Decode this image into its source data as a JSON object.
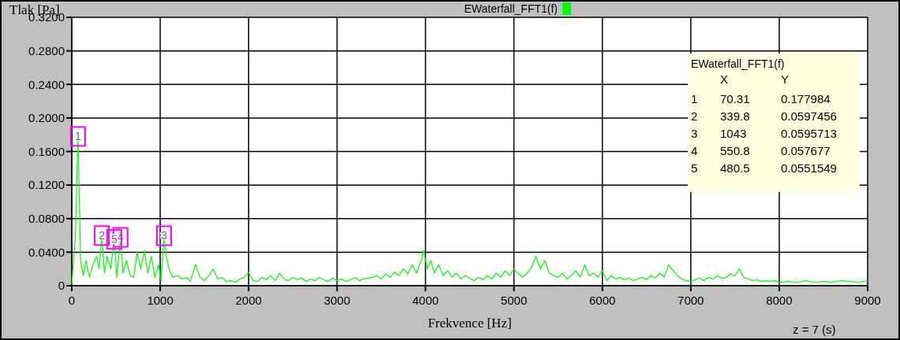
{
  "chart_data": {
    "type": "line",
    "xlabel": "Frekvence [Hz]",
    "ylabel": "Tlak [Pa]",
    "legend": "top",
    "grid": true,
    "xlim": [
      0,
      9000
    ],
    "ylim": [
      0,
      0.32
    ],
    "xticks": [
      0,
      1000,
      2000,
      3000,
      4000,
      5000,
      6000,
      7000,
      8000,
      9000
    ],
    "yticks": [
      {
        "value": 0,
        "label": "0"
      },
      {
        "value": 0.04,
        "label": "0.0400"
      },
      {
        "value": 0.08,
        "label": "0.0800"
      },
      {
        "value": 0.12,
        "label": "0.1200"
      },
      {
        "value": 0.16,
        "label": "0.1600"
      },
      {
        "value": 0.2,
        "label": "0.2000"
      },
      {
        "value": 0.24,
        "label": "0.2400"
      },
      {
        "value": 0.28,
        "label": "0.2800"
      },
      {
        "value": 0.32,
        "label": "0.3200"
      }
    ],
    "x": [
      0,
      20,
      40,
      70.31,
      100,
      130,
      160,
      200,
      240,
      280,
      310,
      339.8,
      370,
      400,
      440,
      480.5,
      510,
      550.8,
      580,
      620,
      660,
      700,
      740,
      780,
      820,
      860,
      900,
      940,
      980,
      1010,
      1043,
      1070,
      1100,
      1140,
      1200,
      1250,
      1300,
      1340,
      1400,
      1450,
      1500,
      1550,
      1600,
      1650,
      1700,
      1750,
      1800,
      1850,
      1900,
      1950,
      2000,
      2050,
      2100,
      2150,
      2200,
      2250,
      2300,
      2350,
      2400,
      2450,
      2500,
      2550,
      2600,
      2650,
      2700,
      2750,
      2800,
      2850,
      2900,
      2950,
      3000,
      3050,
      3100,
      3150,
      3200,
      3250,
      3300,
      3350,
      3400,
      3450,
      3500,
      3550,
      3600,
      3650,
      3700,
      3750,
      3800,
      3850,
      3900,
      3950,
      3980,
      4020,
      4060,
      4100,
      4150,
      4200,
      4250,
      4300,
      4350,
      4400,
      4450,
      4500,
      4550,
      4600,
      4650,
      4700,
      4750,
      4800,
      4850,
      4900,
      4950,
      5000,
      5050,
      5100,
      5150,
      5200,
      5250,
      5300,
      5350,
      5400,
      5450,
      5500,
      5550,
      5600,
      5650,
      5700,
      5750,
      5800,
      5850,
      5900,
      5950,
      6000,
      6050,
      6100,
      6150,
      6200,
      6250,
      6300,
      6350,
      6400,
      6450,
      6500,
      6550,
      6600,
      6650,
      6700,
      6750,
      6800,
      6850,
      6900,
      6950,
      7000,
      7050,
      7100,
      7150,
      7200,
      7250,
      7300,
      7350,
      7400,
      7450,
      7500,
      7550,
      7600,
      7650,
      7700,
      7750,
      7800,
      7850,
      7900,
      7950,
      8000,
      8100,
      8200,
      8300,
      8400,
      8500,
      8600,
      8700,
      8800,
      8900,
      9000
    ],
    "series": [
      {
        "name": "EWaterfall_FFT1(f)",
        "color": "#00ff00",
        "values": [
          0.002,
          0.03,
          0.055,
          0.178,
          0.03,
          0.012,
          0.03,
          0.01,
          0.025,
          0.035,
          0.02,
          0.06,
          0.015,
          0.035,
          0.02,
          0.055,
          0.01,
          0.058,
          0.015,
          0.03,
          0.012,
          0.01,
          0.04,
          0.02,
          0.042,
          0.015,
          0.035,
          0.01,
          0.025,
          0.005,
          0.06,
          0.035,
          0.02,
          0.01,
          0.012,
          0.008,
          0.01,
          0.005,
          0.025,
          0.01,
          0.006,
          0.012,
          0.02,
          0.008,
          0.01,
          0.005,
          0.006,
          0.004,
          0.008,
          0.01,
          0.016,
          0.006,
          0.005,
          0.01,
          0.007,
          0.012,
          0.006,
          0.015,
          0.008,
          0.006,
          0.01,
          0.007,
          0.009,
          0.005,
          0.008,
          0.006,
          0.01,
          0.007,
          0.005,
          0.009,
          0.006,
          0.008,
          0.005,
          0.007,
          0.01,
          0.006,
          0.008,
          0.009,
          0.01,
          0.012,
          0.008,
          0.014,
          0.01,
          0.016,
          0.012,
          0.02,
          0.014,
          0.025,
          0.015,
          0.03,
          0.042,
          0.02,
          0.03,
          0.015,
          0.025,
          0.012,
          0.018,
          0.01,
          0.015,
          0.008,
          0.012,
          0.009,
          0.006,
          0.01,
          0.007,
          0.012,
          0.008,
          0.015,
          0.01,
          0.018,
          0.012,
          0.02,
          0.014,
          0.01,
          0.015,
          0.022,
          0.035,
          0.02,
          0.03,
          0.015,
          0.012,
          0.01,
          0.015,
          0.008,
          0.012,
          0.018,
          0.01,
          0.025,
          0.012,
          0.015,
          0.01,
          0.018,
          0.006,
          0.012,
          0.008,
          0.01,
          0.007,
          0.009,
          0.006,
          0.008,
          0.01,
          0.007,
          0.012,
          0.009,
          0.015,
          0.01,
          0.025,
          0.018,
          0.012,
          0.008,
          0.006,
          0.005,
          0.007,
          0.009,
          0.006,
          0.01,
          0.008,
          0.012,
          0.009,
          0.01,
          0.014,
          0.012,
          0.02,
          0.01,
          0.008,
          0.006,
          0.007,
          0.005,
          0.006,
          0.005,
          0.006,
          0.004,
          0.005,
          0.004,
          0.006,
          0.004,
          0.005,
          0.004,
          0.006,
          0.005,
          0.004,
          0.006
        ]
      }
    ],
    "annotations": [
      {
        "text": "1",
        "x": 70.31,
        "y": 0.177984
      },
      {
        "text": "2",
        "x": 339.8,
        "y": 0.0597456
      },
      {
        "text": "3",
        "x": 1043,
        "y": 0.0595713
      },
      {
        "text": "4",
        "x": 550.8,
        "y": 0.057677
      },
      {
        "text": "5",
        "x": 480.5,
        "y": 0.0551549
      },
      "EWaterfall_FFT1(f)",
      "X",
      "Y",
      "1",
      "70.31",
      "0.177984",
      "2",
      "339.8",
      "0.0597456",
      "3",
      "1043",
      "0.0595713",
      "4",
      "550.8",
      "0.057677",
      "5",
      "480.5",
      "0.0551549",
      "z =  7 (s)"
    ]
  }
}
